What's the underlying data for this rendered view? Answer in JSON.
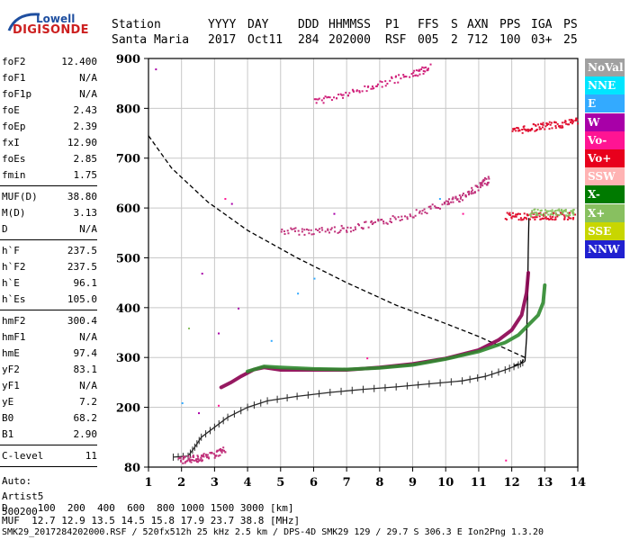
{
  "logo": {
    "line1": "Lowell",
    "line2": "DIGISONDE"
  },
  "header": {
    "labels": [
      "Station",
      "YYYY",
      "DAY",
      "DDD",
      "HHMMSS",
      "P1",
      "FFS",
      "S",
      "AXN",
      "PPS",
      "IGA",
      "PS"
    ],
    "values": [
      "Santa Maria",
      "2017",
      "Oct11",
      "284",
      "202000",
      "RSF",
      "005",
      "2",
      "712",
      "100",
      "03+",
      "25"
    ]
  },
  "params": {
    "group1": [
      {
        "k": "foF2",
        "v": "12.400"
      },
      {
        "k": "foF1",
        "v": "N/A"
      },
      {
        "k": "foF1p",
        "v": "N/A"
      },
      {
        "k": "foE",
        "v": "2.43"
      },
      {
        "k": "foEp",
        "v": "2.39"
      },
      {
        "k": "fxI",
        "v": "12.90"
      },
      {
        "k": "foEs",
        "v": "2.85"
      },
      {
        "k": "fmin",
        "v": "1.75"
      }
    ],
    "group2": [
      {
        "k": "MUF(D)",
        "v": "38.80"
      },
      {
        "k": "M(D)",
        "v": "3.13"
      },
      {
        "k": "D",
        "v": "N/A"
      }
    ],
    "group3": [
      {
        "k": "h`F",
        "v": "237.5"
      },
      {
        "k": "h`F2",
        "v": "237.5"
      },
      {
        "k": "h`E",
        "v": "96.1"
      },
      {
        "k": "h`Es",
        "v": "105.0"
      }
    ],
    "group4": [
      {
        "k": "hmF2",
        "v": "300.4"
      },
      {
        "k": "hmF1",
        "v": "N/A"
      },
      {
        "k": "hmE",
        "v": "97.4"
      },
      {
        "k": "yF2",
        "v": "83.1"
      },
      {
        "k": "yF1",
        "v": "N/A"
      },
      {
        "k": "yE",
        "v": "7.2"
      },
      {
        "k": "B0",
        "v": "68.2"
      },
      {
        "k": "B1",
        "v": "2.90"
      }
    ],
    "group5": [
      {
        "k": "C-level",
        "v": "11"
      }
    ],
    "auto": [
      "Auto:",
      "Artist5",
      "500200"
    ]
  },
  "legend": [
    {
      "label": "NoVal",
      "bg": "#a0a0a0",
      "fg": "#ffffff"
    },
    {
      "label": "NNE",
      "bg": "#00e5ff",
      "fg": "#ffffff"
    },
    {
      "label": "E",
      "bg": "#33aaff",
      "fg": "#ffffff"
    },
    {
      "label": "W",
      "bg": "#a800a8",
      "fg": "#ffffff"
    },
    {
      "label": "Vo-",
      "bg": "#ff1493",
      "fg": "#ffffff"
    },
    {
      "label": "Vo+",
      "bg": "#e8001c",
      "fg": "#ffffff"
    },
    {
      "label": "SSW",
      "bg": "#ffb3b3",
      "fg": "#ffffff"
    },
    {
      "label": "X-",
      "bg": "#007a00",
      "fg": "#ffffff"
    },
    {
      "label": "X+",
      "bg": "#88c060",
      "fg": "#ffffff"
    },
    {
      "label": "SSE",
      "bg": "#c8d600",
      "fg": "#ffffff"
    },
    {
      "label": "NNW",
      "bg": "#2020d0",
      "fg": "#ffffff"
    }
  ],
  "chart_data": {
    "type": "scatter",
    "xlim": [
      1,
      14
    ],
    "ylim": [
      80,
      900
    ],
    "x_ticks": [
      1,
      2,
      3,
      4,
      5,
      6,
      7,
      8,
      9,
      10,
      11,
      12,
      13,
      14
    ],
    "y_ticks": [
      80,
      200,
      300,
      400,
      500,
      600,
      700,
      800,
      900
    ],
    "grid": true,
    "series": [
      {
        "color": "#2a2a2a",
        "style": "profile-with-ticks",
        "points": [
          [
            1.75,
            100
          ],
          [
            2.2,
            102
          ],
          [
            2.4,
            120
          ],
          [
            2.6,
            140
          ],
          [
            3.0,
            160
          ],
          [
            3.4,
            180
          ],
          [
            4.0,
            200
          ],
          [
            4.6,
            213
          ],
          [
            5.5,
            222
          ],
          [
            6.5,
            230
          ],
          [
            7.5,
            236
          ],
          [
            8.5,
            241
          ],
          [
            9.5,
            247
          ],
          [
            10.5,
            253
          ],
          [
            11.2,
            262
          ],
          [
            11.8,
            275
          ],
          [
            12.2,
            285
          ],
          [
            12.4,
            292
          ]
        ]
      },
      {
        "color": "#000000",
        "style": "solid",
        "points": [
          [
            12.4,
            292
          ],
          [
            12.45,
            340
          ],
          [
            12.48,
            420
          ],
          [
            12.5,
            520
          ],
          [
            12.52,
            580
          ]
        ]
      },
      {
        "color": "#000000",
        "style": "dashed",
        "points": [
          [
            1.0,
            745
          ],
          [
            1.7,
            680
          ],
          [
            2.8,
            612
          ],
          [
            4.0,
            555
          ],
          [
            5.5,
            500
          ],
          [
            7.0,
            450
          ],
          [
            8.5,
            405
          ],
          [
            10.0,
            368
          ],
          [
            11.0,
            342
          ],
          [
            11.8,
            318
          ],
          [
            12.4,
            300
          ],
          [
            12.3,
            290
          ],
          [
            12.0,
            282
          ]
        ]
      },
      {
        "color": "#8b0050",
        "style": "thick",
        "points": [
          [
            3.2,
            240
          ],
          [
            3.5,
            250
          ],
          [
            3.8,
            262
          ],
          [
            4.2,
            276
          ],
          [
            4.5,
            280
          ],
          [
            5.0,
            275
          ],
          [
            6.0,
            275
          ],
          [
            7.0,
            275
          ],
          [
            8.0,
            280
          ],
          [
            9.0,
            287
          ],
          [
            10.0,
            298
          ],
          [
            11.0,
            315
          ],
          [
            11.6,
            335
          ],
          [
            12.0,
            355
          ],
          [
            12.3,
            385
          ],
          [
            12.45,
            430
          ],
          [
            12.5,
            470
          ]
        ]
      },
      {
        "color": "#2f8a2f",
        "style": "thick",
        "points": [
          [
            4.0,
            272
          ],
          [
            4.5,
            282
          ],
          [
            5.0,
            280
          ],
          [
            6.0,
            277
          ],
          [
            7.0,
            276
          ],
          [
            8.0,
            279
          ],
          [
            9.0,
            285
          ],
          [
            10.0,
            297
          ],
          [
            11.0,
            312
          ],
          [
            11.8,
            330
          ],
          [
            12.2,
            345
          ],
          [
            12.5,
            365
          ],
          [
            12.8,
            385
          ],
          [
            12.95,
            410
          ],
          [
            13.0,
            445
          ]
        ]
      },
      {
        "color": "#c0307a",
        "style": "scatter-band",
        "points": [
          [
            5.0,
            555
          ],
          [
            6.0,
            555
          ],
          [
            7.0,
            560
          ],
          [
            8.0,
            572
          ],
          [
            9.0,
            590
          ],
          [
            10.0,
            610
          ],
          [
            10.5,
            625
          ],
          [
            11.0,
            645
          ],
          [
            11.3,
            660
          ]
        ]
      },
      {
        "color": "#d0207a",
        "style": "scatter-band",
        "points": [
          [
            6.0,
            815
          ],
          [
            7.0,
            830
          ],
          [
            8.0,
            850
          ],
          [
            9.0,
            870
          ],
          [
            9.5,
            885
          ]
        ]
      },
      {
        "color": "#e01030",
        "style": "scatter-band",
        "points": [
          [
            12.0,
            755
          ],
          [
            12.5,
            762
          ],
          [
            13.0,
            766
          ],
          [
            13.5,
            770
          ],
          [
            14.0,
            778
          ]
        ]
      },
      {
        "color": "#e01030",
        "style": "scatter-band",
        "points": [
          [
            11.8,
            585
          ],
          [
            12.3,
            585
          ],
          [
            12.8,
            585
          ],
          [
            13.3,
            585
          ],
          [
            13.9,
            585
          ]
        ]
      },
      {
        "color": "#88c060",
        "style": "scatter-band",
        "points": [
          [
            12.5,
            592
          ],
          [
            13.0,
            592
          ],
          [
            13.5,
            592
          ],
          [
            13.9,
            592
          ]
        ]
      },
      {
        "color": "#c0307a",
        "style": "scatter-band",
        "points": [
          [
            1.9,
            95
          ],
          [
            2.3,
            98
          ],
          [
            2.6,
            100
          ],
          [
            3.0,
            108
          ],
          [
            3.3,
            115
          ]
        ]
      }
    ]
  },
  "footer": {
    "line1": "D     100  200  400  600  800 1000 1500 3000 [km]",
    "line2": "MUF  12.7 12.9 13.5 14.5 15.8 17.9 23.7 38.8 [MHz]",
    "line3": "SMK29_2017284202000.RSF / 520fx512h 25 kHz 2.5 km / DPS-4D SMK29 129 / 29.7 S 306.3 E Ion2Png 1.3.20"
  }
}
